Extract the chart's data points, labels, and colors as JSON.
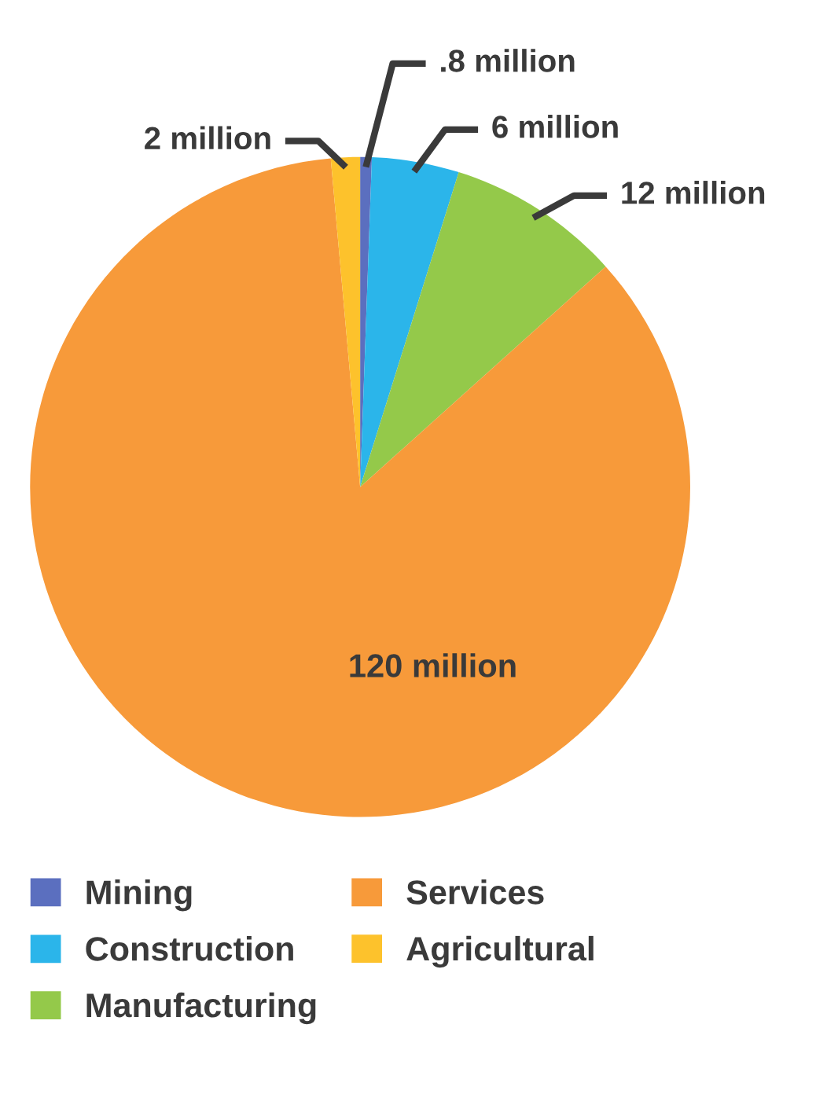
{
  "chart_data": {
    "type": "pie",
    "categories": [
      "Mining",
      "Construction",
      "Manufacturing",
      "Services",
      "Agricultural"
    ],
    "values": [
      0.8,
      6,
      12,
      120,
      2
    ],
    "value_labels": [
      ".8 million",
      "6 million",
      "12 million",
      "120 million",
      "2 million"
    ],
    "colors": [
      "#5b6fbf",
      "#2bb5ea",
      "#94c94a",
      "#f79a3a",
      "#fdc22c"
    ],
    "legend": "bottom"
  }
}
